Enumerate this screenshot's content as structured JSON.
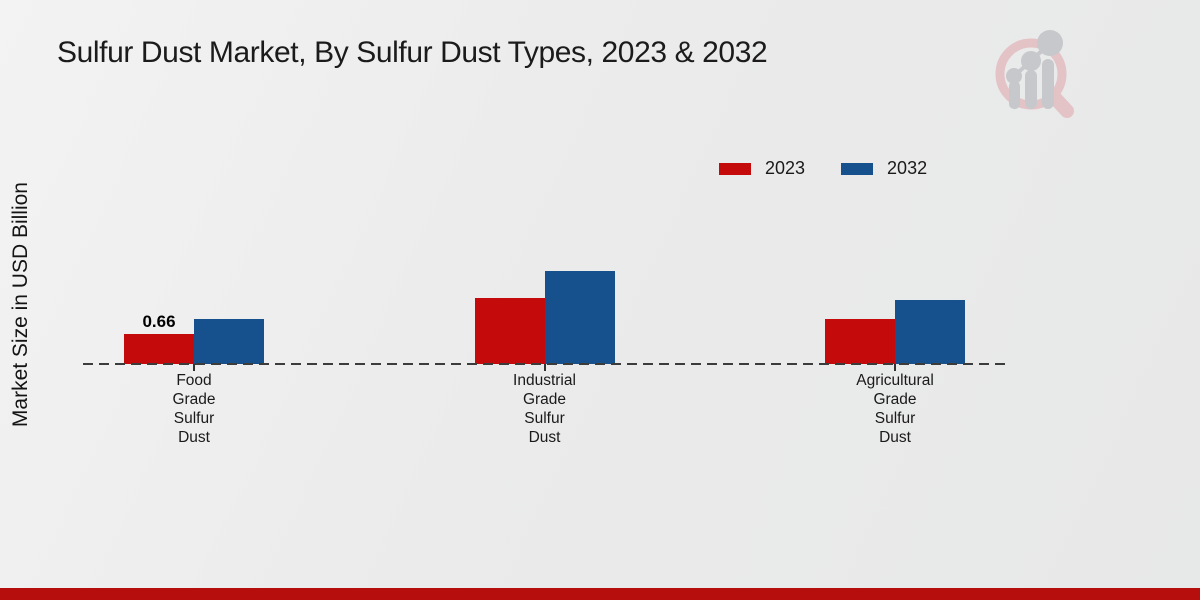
{
  "title": "Sulfur Dust Market, By Sulfur Dust Types, 2023 & 2032",
  "y_axis_label": "Market Size in USD Billion",
  "legend": {
    "items": [
      {
        "label": "2023",
        "color": "#c40a0a"
      },
      {
        "label": "2032",
        "color": "#16508d"
      }
    ]
  },
  "colors": {
    "bar_2023": "#c40a0a",
    "bar_2032": "#16508d",
    "bottom_strip": "#b60d0d",
    "baseline": "#3c3c3c",
    "logo_pink": "#e4c3c7",
    "logo_gray": "#c7c8cb"
  },
  "chart_data": {
    "type": "bar",
    "title": "Sulfur Dust Market, By Sulfur Dust Types, 2023 & 2032",
    "xlabel": "",
    "ylabel": "Market Size in USD Billion",
    "categories": [
      "Food Grade Sulfur Dust",
      "Industrial Grade Sulfur Dust",
      "Agricultural Grade Sulfur Dust"
    ],
    "series": [
      {
        "name": "2023",
        "color": "#c40a0a",
        "values": [
          0.66,
          1.45,
          1.0
        ],
        "value_labels": [
          "0.66",
          "",
          ""
        ]
      },
      {
        "name": "2032",
        "color": "#16508d",
        "values": [
          1.0,
          2.05,
          1.4
        ],
        "value_labels": [
          "",
          "",
          ""
        ]
      }
    ],
    "ylim": [
      0,
      2.4
    ],
    "grid": false,
    "baseline_style": "dashed",
    "legend_position": "top-right",
    "logo_name": "market-research-magnifier-logo"
  }
}
